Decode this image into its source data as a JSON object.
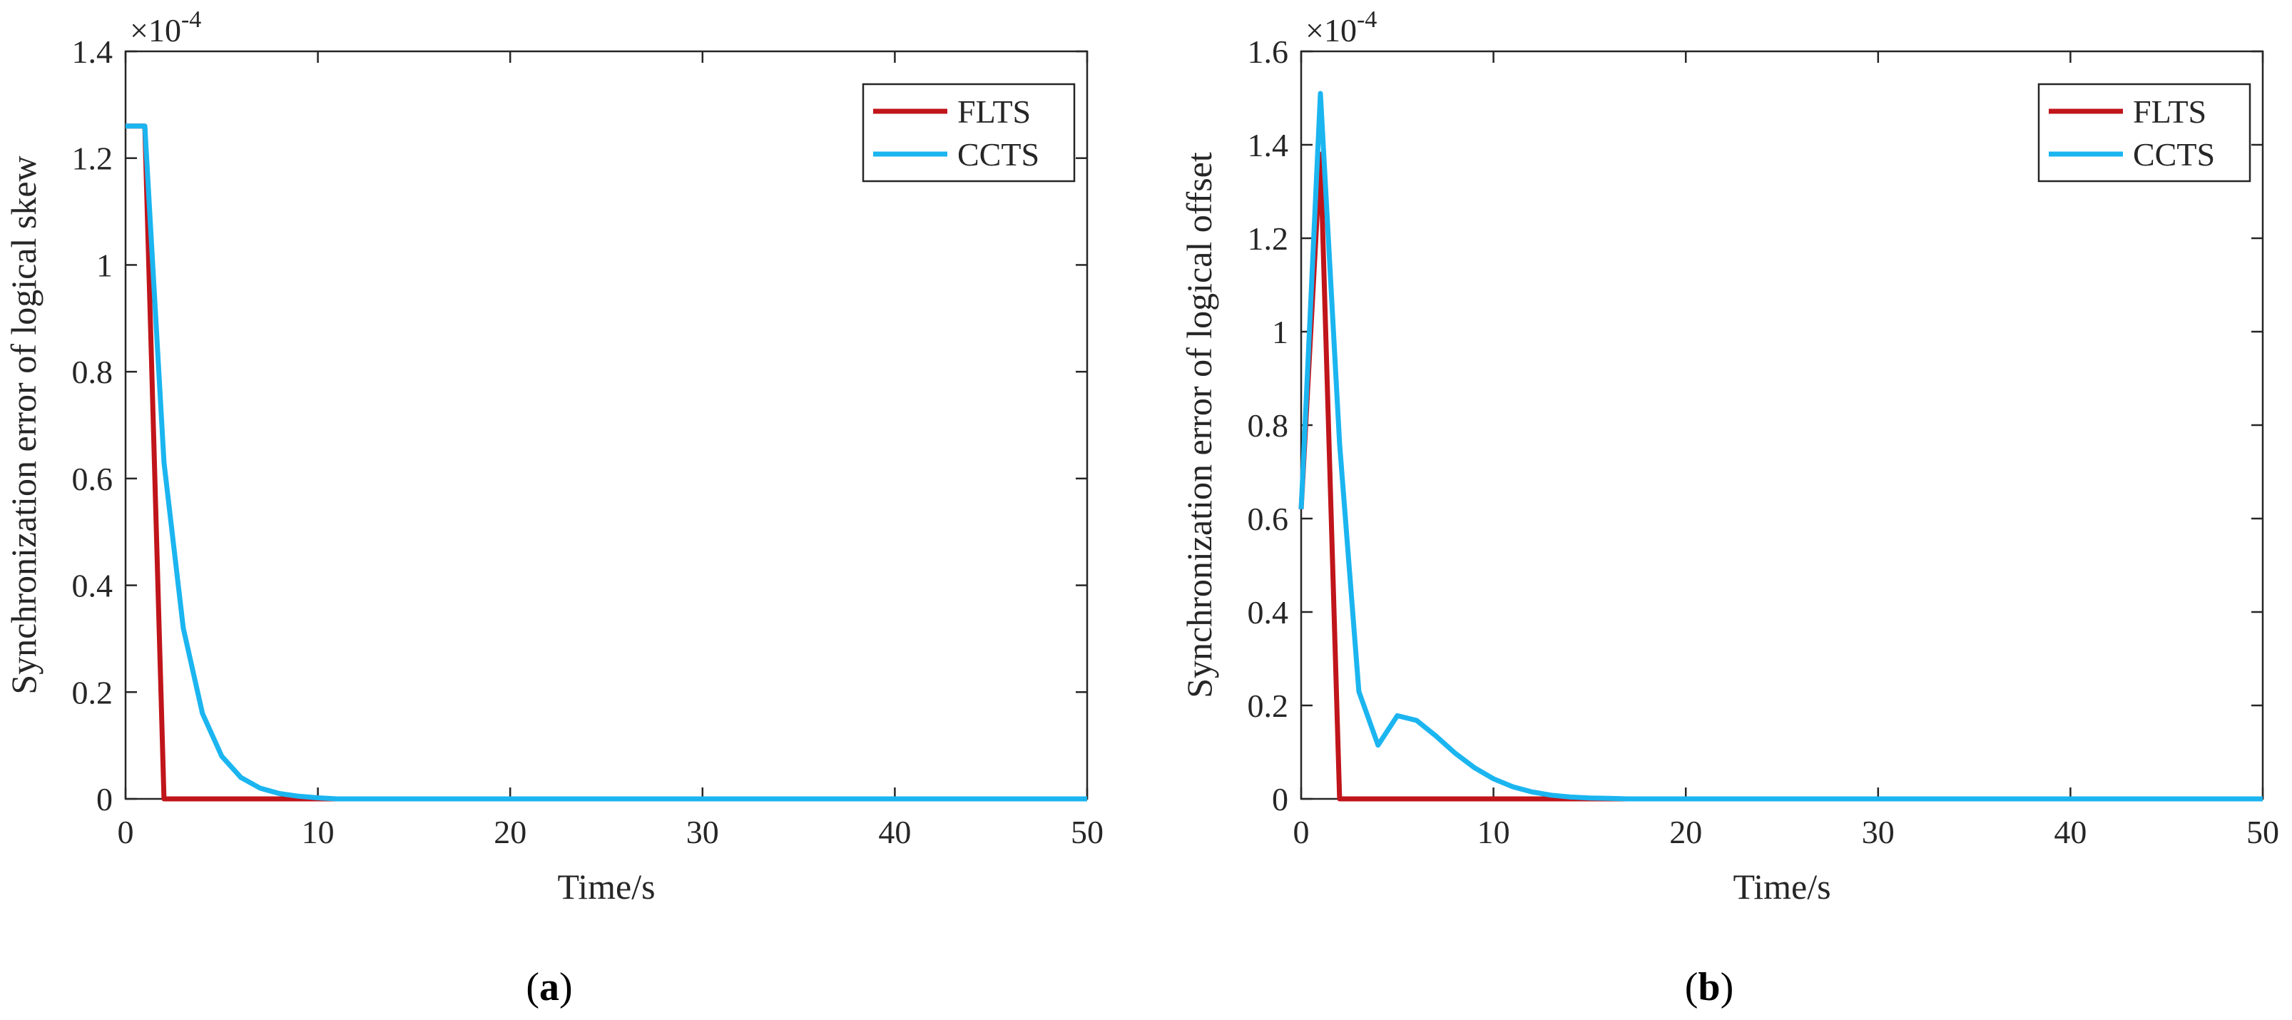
{
  "chart_data": [
    {
      "type": "line",
      "panel": "a",
      "xlabel": "Time/s",
      "ylabel": "Synchronization error of logical skew",
      "exponent_label": "×10",
      "exponent_power": "-4",
      "xlim": [
        0,
        50
      ],
      "ylim": [
        0,
        1.4
      ],
      "xticks": [
        0,
        10,
        20,
        30,
        40,
        50
      ],
      "yticks": [
        0,
        0.2,
        0.4,
        0.6,
        0.8,
        1,
        1.2,
        1.4
      ],
      "xtick_labels": [
        "0",
        "10",
        "20",
        "30",
        "40",
        "50"
      ],
      "ytick_labels": [
        "0",
        "0.2",
        "0.4",
        "0.6",
        "0.8",
        "1",
        "1.2",
        "1.4"
      ],
      "grid": false,
      "legend_position": "top-right",
      "series": [
        {
          "name": "FLTS",
          "color": "#C0151B",
          "x": [
            0,
            1,
            2,
            50
          ],
          "y": [
            1.26,
            1.26,
            0,
            0
          ]
        },
        {
          "name": "CCTS",
          "color": "#1BB5F0",
          "x": [
            0,
            1,
            2,
            3,
            4,
            5,
            6,
            7,
            8,
            9,
            10,
            11,
            50
          ],
          "y": [
            1.26,
            1.26,
            0.63,
            0.32,
            0.16,
            0.08,
            0.04,
            0.02,
            0.01,
            0.005,
            0.002,
            0,
            0
          ]
        }
      ],
      "caption": "(a)"
    },
    {
      "type": "line",
      "panel": "b",
      "xlabel": "Time/s",
      "ylabel": "Synchronization error of logical offset",
      "exponent_label": "×10",
      "exponent_power": "-4",
      "xlim": [
        0,
        50
      ],
      "ylim": [
        0,
        1.6
      ],
      "xticks": [
        0,
        10,
        20,
        30,
        40,
        50
      ],
      "yticks": [
        0,
        0.2,
        0.4,
        0.6,
        0.8,
        1,
        1.2,
        1.4,
        1.6
      ],
      "xtick_labels": [
        "0",
        "10",
        "20",
        "30",
        "40",
        "50"
      ],
      "ytick_labels": [
        "0",
        "0.2",
        "0.4",
        "0.6",
        "0.8",
        "1",
        "1.2",
        "1.4",
        "1.6"
      ],
      "grid": false,
      "legend_position": "top-right",
      "series": [
        {
          "name": "FLTS",
          "color": "#C0151B",
          "x": [
            0,
            1,
            2,
            50
          ],
          "y": [
            0.62,
            1.38,
            0,
            0
          ]
        },
        {
          "name": "CCTS",
          "color": "#1BB5F0",
          "x": [
            0,
            1,
            2,
            3,
            4,
            5,
            6,
            7,
            8,
            9,
            10,
            11,
            12,
            13,
            14,
            15,
            16,
            17,
            50
          ],
          "y": [
            0.62,
            1.51,
            0.76,
            0.23,
            0.115,
            0.178,
            0.168,
            0.135,
            0.098,
            0.067,
            0.043,
            0.026,
            0.015,
            0.008,
            0.004,
            0.002,
            0.001,
            0,
            0
          ]
        }
      ],
      "caption": "(b)"
    }
  ]
}
